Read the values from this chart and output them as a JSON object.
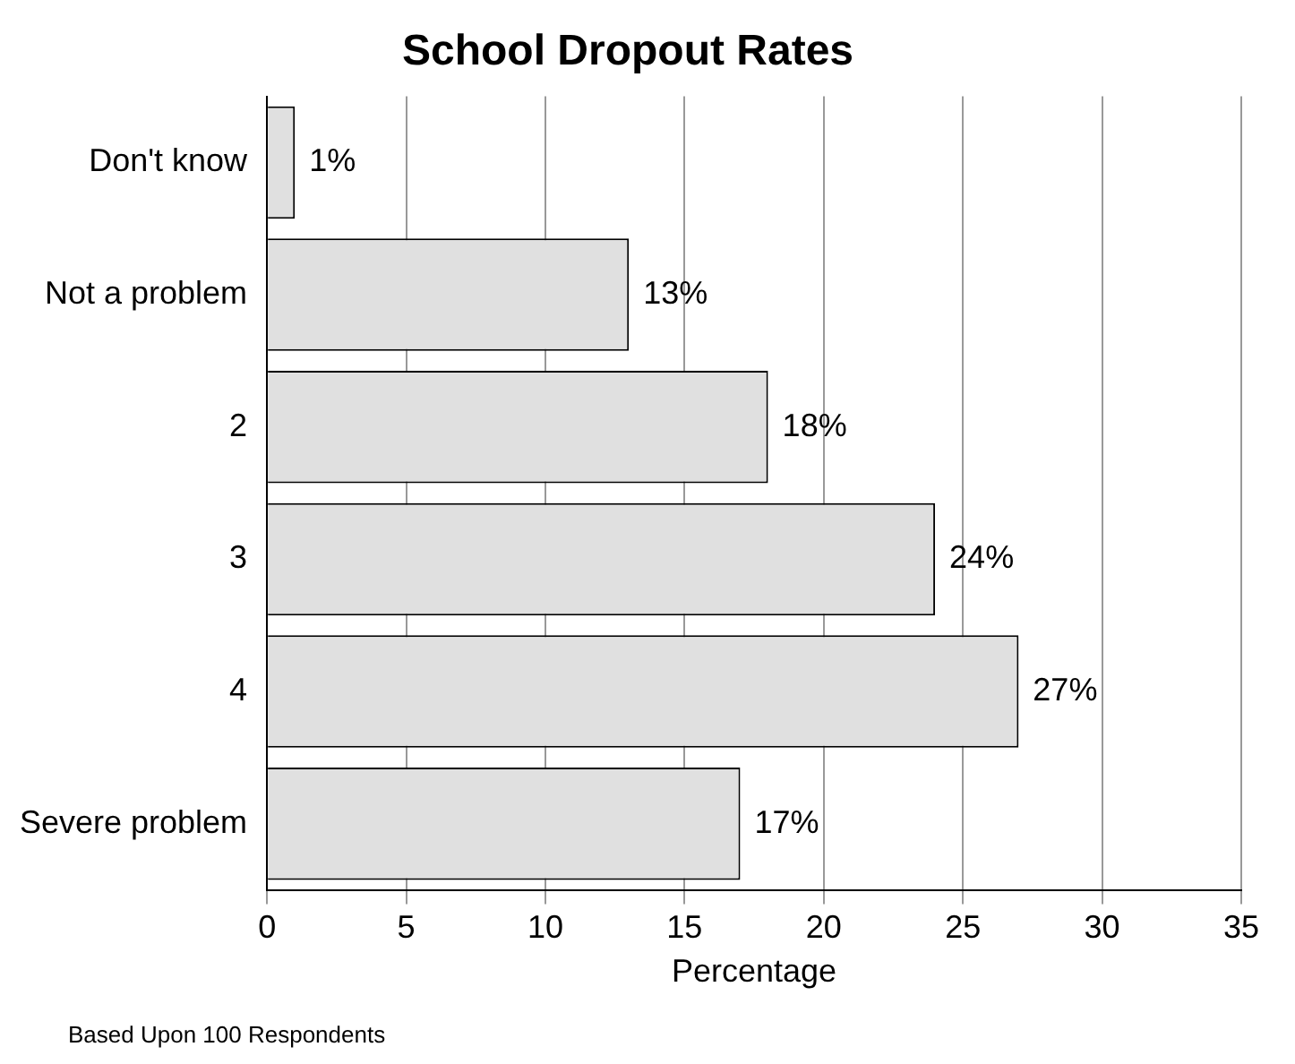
{
  "chart_data": {
    "type": "bar",
    "orientation": "horizontal",
    "title": "School Dropout Rates",
    "xlabel": "Percentage",
    "categories": [
      "Don't know",
      "Not a problem",
      "2",
      "3",
      "4",
      "Severe problem"
    ],
    "values": [
      1,
      13,
      18,
      24,
      27,
      17
    ],
    "value_labels": [
      "1%",
      "13%",
      "18%",
      "24%",
      "27%",
      "17%"
    ],
    "color": "#e0e0e0",
    "xlim": [
      0,
      35
    ],
    "xticks": [
      0,
      5,
      10,
      15,
      20,
      25,
      30,
      35
    ],
    "grid": "x",
    "legend": false,
    "annotations": [
      "Based Upon 100 Respondents"
    ]
  }
}
